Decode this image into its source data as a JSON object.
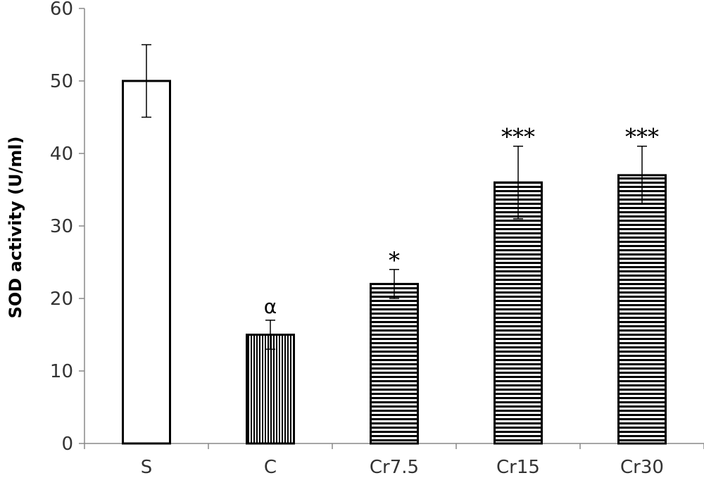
{
  "chart_data": {
    "type": "bar",
    "title": "",
    "xlabel": "",
    "ylabel": "SOD activity (U/ml)",
    "ylim": [
      0,
      60
    ],
    "yticks": [
      0,
      10,
      20,
      30,
      40,
      50,
      60
    ],
    "grid": false,
    "categories": [
      "S",
      "C",
      "Cr7.5",
      "Cr15",
      "Cr30"
    ],
    "values": [
      50,
      15,
      22,
      36,
      37
    ],
    "errors": [
      5,
      2,
      2,
      5,
      4
    ],
    "annotations": [
      "",
      "α",
      "*",
      "***",
      "***"
    ],
    "fills": [
      "plain",
      "vertical-lines",
      "horizontal-lines",
      "horizontal-lines",
      "horizontal-lines"
    ],
    "colors": {
      "bar_outline": "#000000",
      "axis": "#888888",
      "tick_text": "#333333"
    }
  }
}
